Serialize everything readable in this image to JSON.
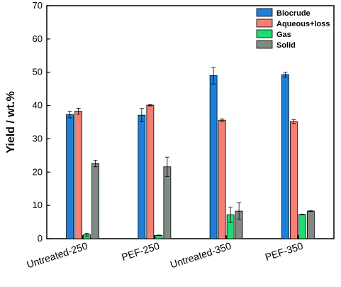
{
  "chart_data": {
    "type": "bar",
    "title": "",
    "xlabel": "",
    "ylabel": "Yield / wt.%",
    "ylim": [
      0,
      70
    ],
    "yticks": [
      0,
      10,
      20,
      30,
      40,
      50,
      60,
      70
    ],
    "grid": false,
    "legend_position": "top-right",
    "categories": [
      "Untreated-250",
      "PEF-250",
      "Untreated-350",
      "PEF-350"
    ],
    "series": [
      {
        "name": "Biocrude",
        "color": "#1f7fd4",
        "values": [
          37.3,
          37.1,
          49.0,
          49.3
        ],
        "errors": [
          1.0,
          2.0,
          2.5,
          0.7
        ]
      },
      {
        "name": "Aqueous+loss",
        "color": "#f47f75",
        "values": [
          38.3,
          40.1,
          35.6,
          35.2
        ],
        "errors": [
          0.9,
          0.2,
          0.4,
          0.6
        ]
      },
      {
        "name": "Gas",
        "color": "#1fdc6e",
        "values": [
          1.2,
          1.0,
          7.2,
          7.3
        ],
        "errors": [
          0.4,
          0.1,
          2.3,
          0.1
        ]
      },
      {
        "name": "Solid",
        "color": "#7f8a82",
        "values": [
          22.6,
          21.6,
          8.3,
          8.3
        ],
        "errors": [
          1.0,
          2.9,
          2.5,
          0.1
        ]
      }
    ]
  }
}
